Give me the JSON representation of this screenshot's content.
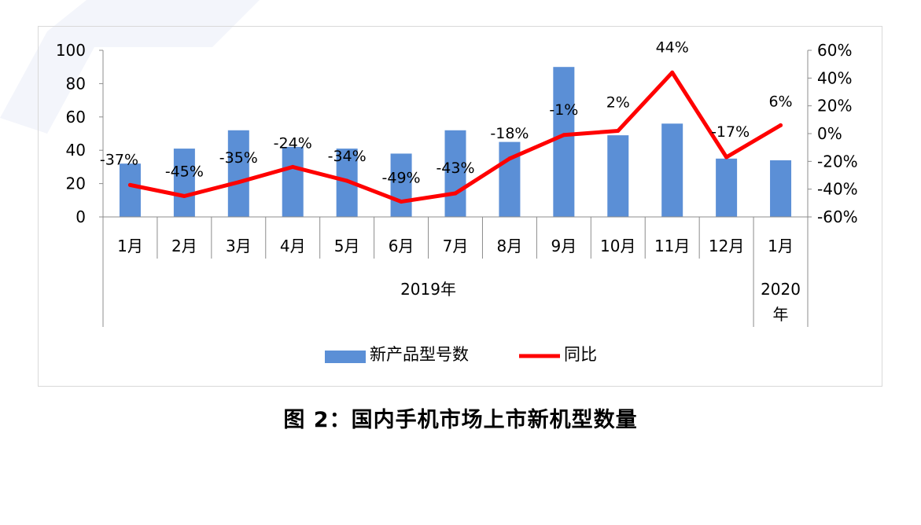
{
  "caption": "图 2：国内手机市场上市新机型数量",
  "colors": {
    "bar": "#5b8fd6",
    "line": "#ff0000",
    "axis": "#8c8c8c",
    "frame": "#d9d9d9",
    "watermark": "#f3f5fb"
  },
  "chart_data": {
    "type": "bar",
    "categories": [
      "1月",
      "2月",
      "3月",
      "4月",
      "5月",
      "6月",
      "7月",
      "8月",
      "9月",
      "10月",
      "11月",
      "12月",
      "1月"
    ],
    "groups": [
      {
        "label": "2019年",
        "count": 12
      },
      {
        "label": "2020年",
        "count": 1
      }
    ],
    "series": [
      {
        "name": "新产品型号数",
        "type": "bar",
        "axis": "left",
        "values": [
          32,
          41,
          52,
          42,
          41,
          38,
          52,
          45,
          90,
          49,
          56,
          35,
          34
        ]
      },
      {
        "name": "同比",
        "type": "line",
        "axis": "right",
        "values": [
          -37,
          -45,
          -35,
          -24,
          -34,
          -49,
          -43,
          -18,
          -1,
          2,
          44,
          -17,
          6
        ],
        "labels": [
          "-37%",
          "-45%",
          "-35%",
          "-24%",
          "-34%",
          "-49%",
          "-43%",
          "-18%",
          "-1%",
          "2%",
          "44%",
          "-17%",
          "6%"
        ]
      }
    ],
    "y_left": {
      "min": 0,
      "max": 100,
      "ticks": [
        0,
        20,
        40,
        60,
        80,
        100
      ],
      "tick_labels": [
        "0",
        "20",
        "40",
        "60",
        "80",
        "100"
      ]
    },
    "y_right": {
      "min": -60,
      "max": 60,
      "ticks": [
        -60,
        -40,
        -20,
        0,
        20,
        40,
        60
      ],
      "tick_labels": [
        "-60%",
        "-40%",
        "-20%",
        "0%",
        "20%",
        "40%",
        "60%"
      ]
    },
    "grid": false,
    "legend": "bottom"
  }
}
